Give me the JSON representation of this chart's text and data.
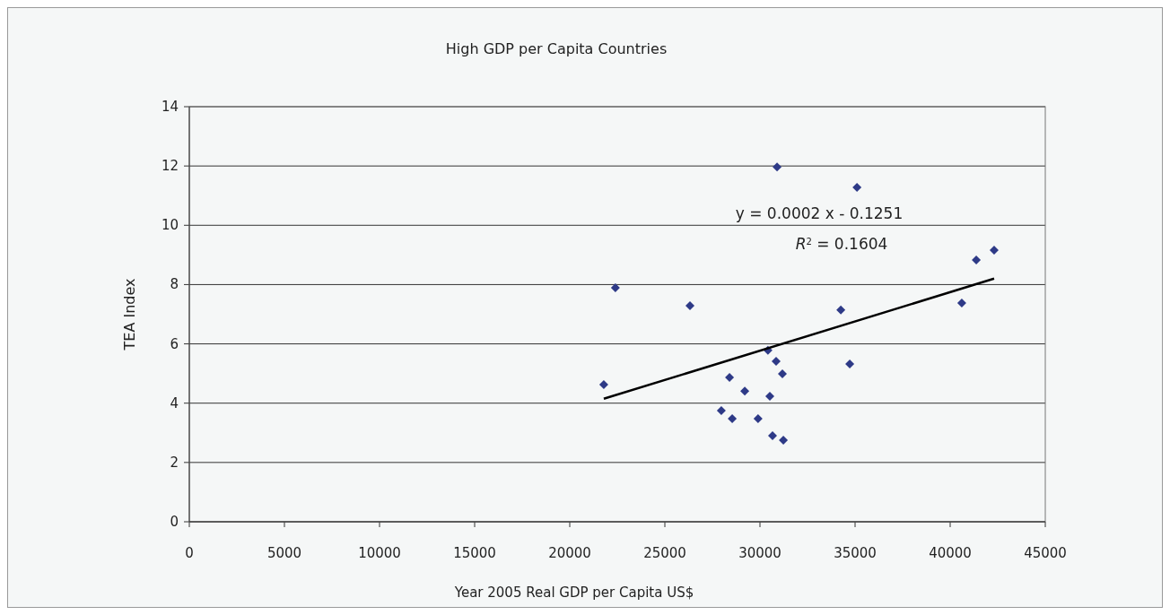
{
  "chart_data": {
    "type": "scatter",
    "title": "High GDP per Capita Countries",
    "xlabel": "Year 2005 Real GDP per Capita US$",
    "ylabel": "TEA Index",
    "xlim": [
      0,
      45000
    ],
    "xticks": [
      0,
      5000,
      10000,
      15000,
      20000,
      25000,
      30000,
      35000,
      40000,
      45000
    ],
    "ylim": [
      0,
      14
    ],
    "yticks": [
      0,
      2,
      4,
      6,
      8,
      10,
      12,
      14
    ],
    "grid": "y",
    "marker": "diamond",
    "annotations": [
      "y = 0.0002 x - 0.1251",
      "R$^{2}$ = 0.1604"
    ],
    "series": [
      {
        "color": "#2e3a87",
        "x": [
          21790,
          22400,
          26320,
          28400,
          27970,
          28540,
          29200,
          29900,
          30520,
          30420,
          30850,
          31180,
          30660,
          31230,
          30900,
          35100,
          34250,
          34720,
          40610,
          41370,
          42310
        ],
        "values": [
          4.63,
          7.89,
          7.29,
          4.87,
          3.75,
          3.48,
          4.41,
          3.48,
          4.23,
          5.78,
          5.41,
          4.99,
          2.9,
          2.75,
          11.97,
          11.28,
          7.14,
          5.32,
          7.38,
          8.83,
          9.16
        ]
      },
      {
        "type": "line",
        "color": "#000000",
        "marker": "none",
        "x": [
          21790,
          42310
        ],
        "values": [
          4.15,
          8.2
        ]
      }
    ]
  }
}
